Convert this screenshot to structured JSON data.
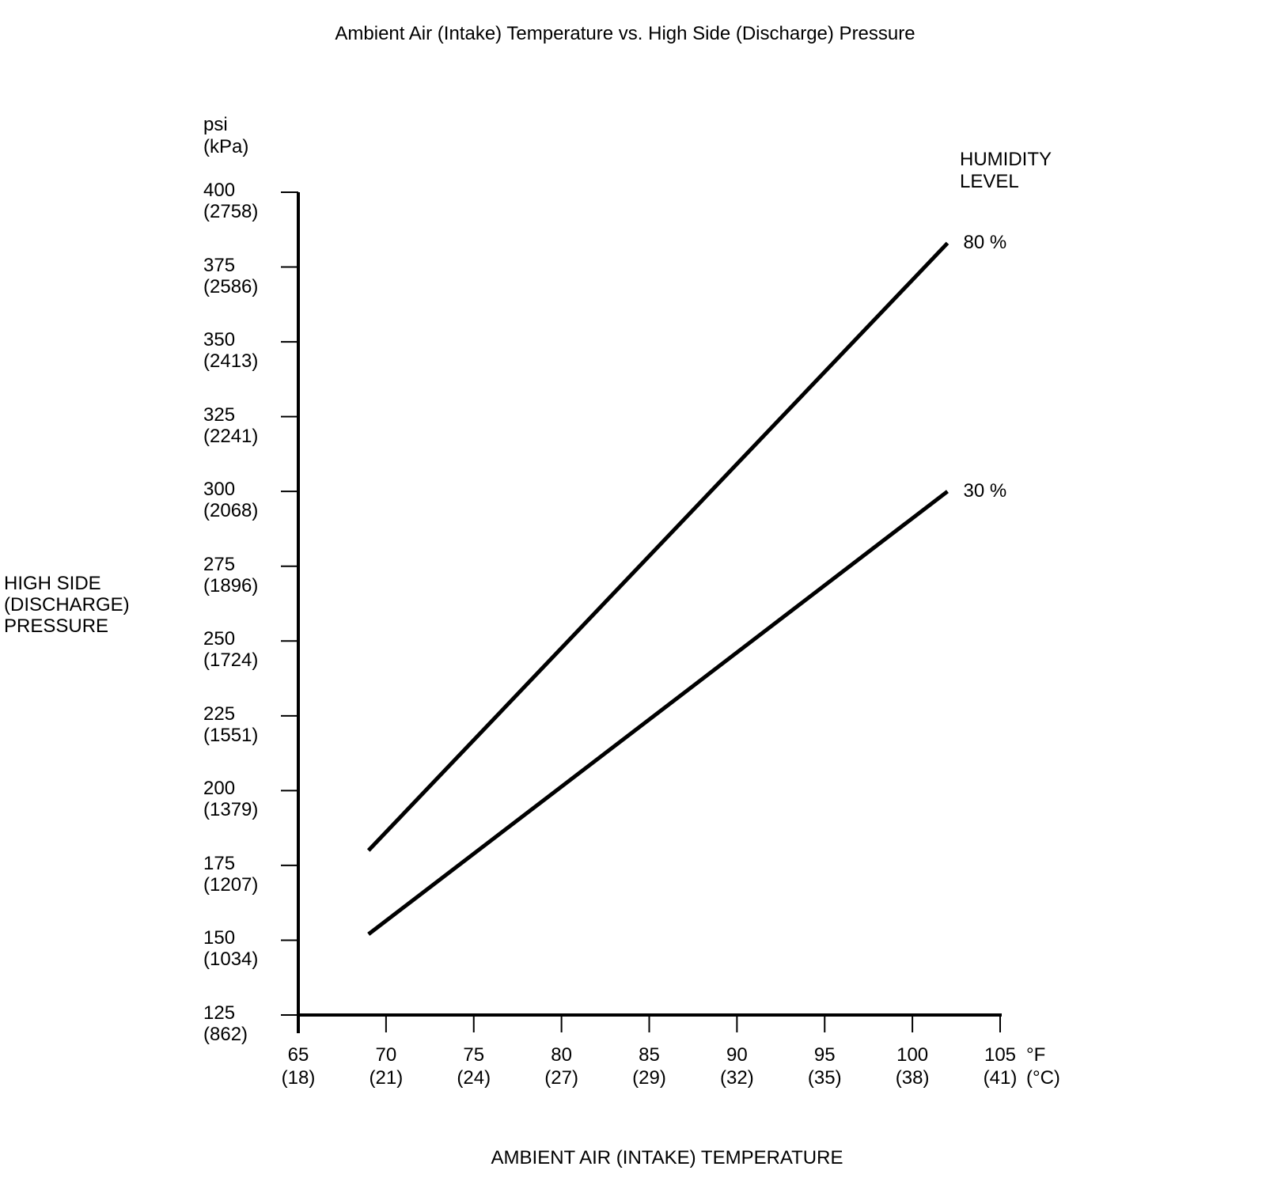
{
  "title": "Ambient Air (Intake) Temperature vs. High Side (Discharge) Pressure",
  "y_axis_unit": {
    "line1": "psi",
    "line2": "(kPa)"
  },
  "y_axis_title": {
    "line1": "HIGH SIDE",
    "line2": "(DISCHARGE)",
    "line3": "PRESSURE"
  },
  "x_axis_title": "AMBIENT AIR (INTAKE) TEMPERATURE",
  "x_axis_unit": {
    "line1": "°F",
    "line2": "(°C)"
  },
  "legend": {
    "title_line1": "HUMIDITY",
    "title_line2": "LEVEL"
  },
  "colors": {
    "line": "#000000",
    "text": "#000000",
    "background": "#ffffff"
  },
  "chart_data": {
    "type": "line",
    "title": "Ambient Air (Intake) Temperature vs. High Side (Discharge) Pressure",
    "xlabel": "AMBIENT AIR (INTAKE) TEMPERATURE",
    "ylabel": "HIGH SIDE (DISCHARGE) PRESSURE",
    "x_unit": "°F (°C)",
    "y_unit": "psi (kPa)",
    "xlim": [
      65,
      105
    ],
    "ylim": [
      125,
      400
    ],
    "grid": false,
    "legend_title": "HUMIDITY LEVEL",
    "legend_position": "right of line ends",
    "x_ticks": [
      {
        "f": 65,
        "c": 18
      },
      {
        "f": 70,
        "c": 21
      },
      {
        "f": 75,
        "c": 24
      },
      {
        "f": 80,
        "c": 27
      },
      {
        "f": 85,
        "c": 29
      },
      {
        "f": 90,
        "c": 32
      },
      {
        "f": 95,
        "c": 35
      },
      {
        "f": 100,
        "c": 38
      },
      {
        "f": 105,
        "c": 41
      }
    ],
    "y_ticks": [
      {
        "psi": 400,
        "kpa": 2758
      },
      {
        "psi": 375,
        "kpa": 2586
      },
      {
        "psi": 350,
        "kpa": 2413
      },
      {
        "psi": 325,
        "kpa": 2241
      },
      {
        "psi": 300,
        "kpa": 2068
      },
      {
        "psi": 275,
        "kpa": 1896
      },
      {
        "psi": 250,
        "kpa": 1724
      },
      {
        "psi": 225,
        "kpa": 1551
      },
      {
        "psi": 200,
        "kpa": 1379
      },
      {
        "psi": 175,
        "kpa": 1207
      },
      {
        "psi": 150,
        "kpa": 1034
      },
      {
        "psi": 125,
        "kpa": 862
      }
    ],
    "series": [
      {
        "name": "80 %",
        "humidity_percent": 80,
        "points_f_psi": [
          [
            69,
            180
          ],
          [
            102,
            383
          ]
        ]
      },
      {
        "name": "30 %",
        "humidity_percent": 30,
        "points_f_psi": [
          [
            69,
            152
          ],
          [
            102,
            300
          ]
        ]
      }
    ]
  }
}
